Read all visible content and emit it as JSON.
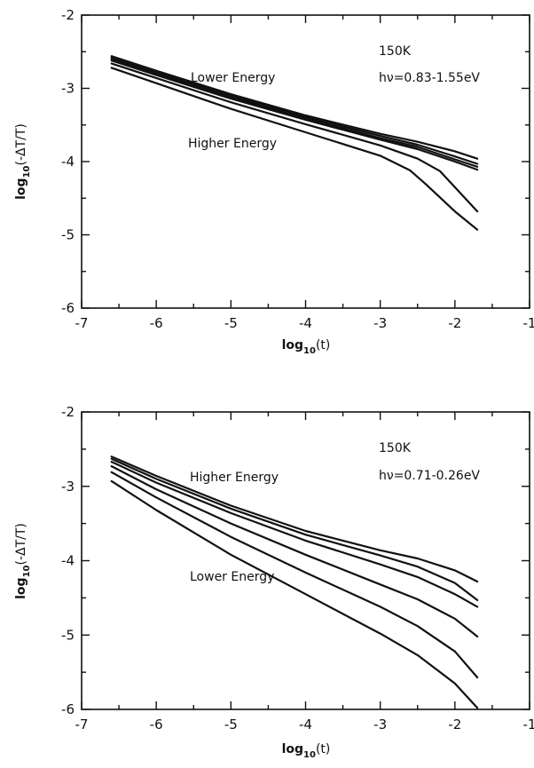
{
  "chart_data": [
    {
      "type": "line",
      "title": "",
      "xlabel": "log10(t)",
      "ylabel": "log10(-ΔT/T)",
      "xlim": [
        -7,
        -1
      ],
      "ylim": [
        -6,
        -2
      ],
      "x_ticks": [
        "-7",
        "-6",
        "-5",
        "-4",
        "-3",
        "-2",
        "-1"
      ],
      "y_ticks": [
        "-2",
        "-3",
        "-4",
        "-5",
        "-6"
      ],
      "grid": false,
      "annotations": [
        "150K",
        "hν=0.83-1.55eV",
        "Lower Energy",
        "Higher Energy"
      ],
      "series": [
        {
          "x": [
            -6.6,
            -6.0,
            -5.0,
            -4.0,
            -3.0,
            -2.5,
            -2.0,
            -1.7
          ],
          "y": [
            -2.56,
            -2.76,
            -3.08,
            -3.37,
            -3.62,
            -3.73,
            -3.86,
            -3.96
          ]
        },
        {
          "x": [
            -6.6,
            -6.0,
            -5.0,
            -4.0,
            -3.0,
            -2.5,
            -2.0,
            -1.7
          ],
          "y": [
            -2.58,
            -2.78,
            -3.1,
            -3.39,
            -3.65,
            -3.77,
            -3.93,
            -4.03
          ]
        },
        {
          "x": [
            -6.6,
            -6.0,
            -5.0,
            -4.0,
            -3.0,
            -2.5,
            -2.0,
            -1.7
          ],
          "y": [
            -2.6,
            -2.8,
            -3.12,
            -3.41,
            -3.68,
            -3.8,
            -3.97,
            -4.07
          ]
        },
        {
          "x": [
            -6.6,
            -6.0,
            -5.0,
            -4.0,
            -3.0,
            -2.5,
            -2.0,
            -1.7
          ],
          "y": [
            -2.62,
            -2.82,
            -3.14,
            -3.43,
            -3.7,
            -3.83,
            -4.0,
            -4.11
          ]
        },
        {
          "x": [
            -6.6,
            -6.0,
            -5.0,
            -4.0,
            -3.0,
            -2.5,
            -2.2,
            -1.7
          ],
          "y": [
            -2.66,
            -2.86,
            -3.19,
            -3.49,
            -3.78,
            -3.96,
            -4.13,
            -4.68
          ]
        },
        {
          "x": [
            -6.6,
            -6.0,
            -5.0,
            -4.0,
            -3.0,
            -2.6,
            -2.4,
            -2.0,
            -1.7
          ],
          "y": [
            -2.72,
            -2.93,
            -3.28,
            -3.6,
            -3.92,
            -4.12,
            -4.3,
            -4.68,
            -4.93
          ]
        }
      ]
    },
    {
      "type": "line",
      "title": "",
      "xlabel": "log10(t)",
      "ylabel": "log10(-ΔT/T)",
      "xlim": [
        -7,
        -1
      ],
      "ylim": [
        -6,
        -2
      ],
      "x_ticks": [
        "-7",
        "-6",
        "-5",
        "-4",
        "-3",
        "-2",
        "-1"
      ],
      "y_ticks": [
        "-2",
        "-3",
        "-4",
        "-5",
        "-6"
      ],
      "grid": false,
      "annotations": [
        "150K",
        "hν=0.71-0.26eV",
        "Higher Energy",
        "Lower Energy"
      ],
      "series": [
        {
          "x": [
            -6.6,
            -6.0,
            -5.0,
            -4.0,
            -3.0,
            -2.5,
            -2.0,
            -1.7
          ],
          "y": [
            -2.6,
            -2.86,
            -3.26,
            -3.6,
            -3.86,
            -3.97,
            -4.13,
            -4.28
          ]
        },
        {
          "x": [
            -6.6,
            -6.0,
            -5.0,
            -4.0,
            -3.0,
            -2.5,
            -2.0,
            -1.7
          ],
          "y": [
            -2.63,
            -2.9,
            -3.3,
            -3.65,
            -3.93,
            -4.08,
            -4.3,
            -4.53
          ]
        },
        {
          "x": [
            -6.6,
            -6.0,
            -5.0,
            -4.0,
            -3.0,
            -2.5,
            -2.0,
            -1.7
          ],
          "y": [
            -2.67,
            -2.95,
            -3.36,
            -3.73,
            -4.05,
            -4.22,
            -4.45,
            -4.62
          ]
        },
        {
          "x": [
            -6.6,
            -6.0,
            -5.0,
            -4.0,
            -3.0,
            -2.5,
            -2.0,
            -1.7
          ],
          "y": [
            -2.73,
            -3.04,
            -3.5,
            -3.92,
            -4.32,
            -4.52,
            -4.78,
            -5.02
          ]
        },
        {
          "x": [
            -6.6,
            -6.0,
            -5.0,
            -4.0,
            -3.0,
            -2.5,
            -2.0,
            -1.7
          ],
          "y": [
            -2.81,
            -3.15,
            -3.68,
            -4.16,
            -4.62,
            -4.88,
            -5.22,
            -5.57
          ]
        },
        {
          "x": [
            -6.6,
            -6.0,
            -5.0,
            -4.0,
            -3.0,
            -2.5,
            -2.0,
            -1.7
          ],
          "y": [
            -2.93,
            -3.32,
            -3.92,
            -4.45,
            -4.98,
            -5.27,
            -5.65,
            -5.98
          ]
        }
      ]
    }
  ]
}
